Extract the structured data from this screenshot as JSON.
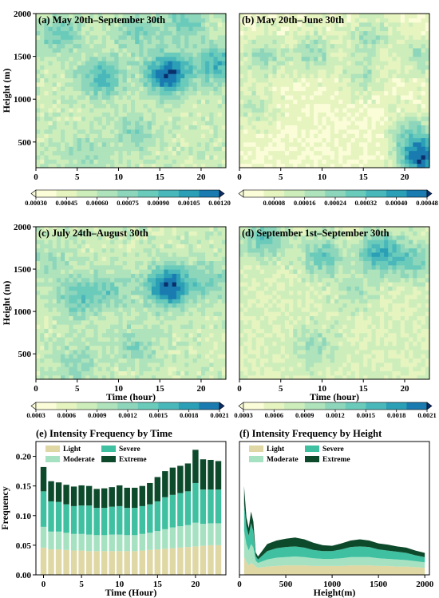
{
  "colors": {
    "contour": [
      "#fbfdd9",
      "#e6f4c0",
      "#cdeebb",
      "#aee3bb",
      "#8dd6bb",
      "#6bcbbb",
      "#4ab8bb",
      "#2a9fb5",
      "#1a7bb0"
    ],
    "extreme_dark": "#0a2f6b",
    "bar_light": "#dfd7a4",
    "bar_moderate": "#a6e2c2",
    "bar_severe": "#3fc0a0",
    "bar_extreme": "#0d4a2c"
  },
  "chart_data": [
    {
      "type": "heatmap",
      "panel": "a",
      "title": "(a) May 20th–September 30th",
      "ylabel": "Height (m)",
      "xlabel": "",
      "xticks": [
        "0",
        "5",
        "10",
        "15",
        "20"
      ],
      "yticks": [
        "500",
        "1000",
        "1500",
        "2000"
      ],
      "xlim": [
        0,
        23
      ],
      "ylim": [
        200,
        2000
      ],
      "colorbar_ticks": [
        "0.00030",
        "0.00045",
        "0.00060",
        "0.00075",
        "0.00090",
        "0.00105",
        "0.00120"
      ],
      "colorbar_range": [
        0.0003,
        0.0012
      ],
      "hotspots": [
        {
          "x": 16,
          "y": 1300,
          "v": 0.00125
        },
        {
          "x": 8,
          "y": 1250,
          "v": 0.00095
        },
        {
          "x": 22,
          "y": 1400,
          "v": 0.00095
        },
        {
          "x": 3,
          "y": 1750,
          "v": 0.00085
        },
        {
          "x": 12,
          "y": 1800,
          "v": 0.0008
        },
        {
          "x": 18,
          "y": 1900,
          "v": 0.00085
        },
        {
          "x": 6,
          "y": 400,
          "v": 0.0007
        },
        {
          "x": 12,
          "y": 600,
          "v": 0.00075
        }
      ],
      "base": 0.00055
    },
    {
      "type": "heatmap",
      "panel": "b",
      "title": "(b) May 20th–June 30th",
      "ylabel": "",
      "xlabel": "",
      "xticks": [
        "0",
        "5",
        "10",
        "15",
        "20"
      ],
      "yticks": [],
      "xlim": [
        0,
        23
      ],
      "ylim": [
        200,
        2000
      ],
      "colorbar_ticks": [
        "0.00008",
        "0.00016",
        "0.00024",
        "0.00032",
        "0.00040",
        "0.00048"
      ],
      "colorbar_range": [
        0.0,
        0.00048
      ],
      "hotspots": [
        {
          "x": 22,
          "y": 300,
          "v": 0.00046
        },
        {
          "x": 21,
          "y": 600,
          "v": 0.00026
        },
        {
          "x": 3,
          "y": 1500,
          "v": 0.00022
        },
        {
          "x": 9,
          "y": 1550,
          "v": 0.00022
        },
        {
          "x": 16,
          "y": 1750,
          "v": 0.0002
        },
        {
          "x": 22,
          "y": 1500,
          "v": 0.0002
        },
        {
          "x": 2,
          "y": 900,
          "v": 0.00016
        },
        {
          "x": 15,
          "y": 1300,
          "v": 0.00018
        }
      ],
      "base": 6e-05
    },
    {
      "type": "heatmap",
      "panel": "c",
      "title": "(c) July 24th–August 30th",
      "ylabel": "Height (m)",
      "xlabel": "Time (hour)",
      "xticks": [
        "0",
        "5",
        "10",
        "15",
        "20"
      ],
      "yticks": [
        "500",
        "1000",
        "1500",
        "2000"
      ],
      "xlim": [
        0,
        23
      ],
      "ylim": [
        200,
        2000
      ],
      "colorbar_ticks": [
        "0.0003",
        "0.0006",
        "0.0009",
        "0.0012",
        "0.0015",
        "0.0018",
        "0.0021"
      ],
      "colorbar_range": [
        0.0003,
        0.0021
      ],
      "hotspots": [
        {
          "x": 16,
          "y": 1300,
          "v": 0.0022
        },
        {
          "x": 5,
          "y": 1150,
          "v": 0.0014
        },
        {
          "x": 9,
          "y": 1250,
          "v": 0.0013
        },
        {
          "x": 21,
          "y": 1350,
          "v": 0.0013
        },
        {
          "x": 5,
          "y": 400,
          "v": 0.0012
        },
        {
          "x": 12,
          "y": 600,
          "v": 0.0012
        },
        {
          "x": 2,
          "y": 1600,
          "v": 0.0011
        },
        {
          "x": 12,
          "y": 1800,
          "v": 0.0008
        }
      ],
      "base": 0.0008
    },
    {
      "type": "heatmap",
      "panel": "d",
      "title": "(d) September 1st–September 30th",
      "ylabel": "",
      "xlabel": "Time (hour)",
      "xticks": [
        "0",
        "5",
        "10",
        "15",
        "20"
      ],
      "yticks": [],
      "xlim": [
        0,
        23
      ],
      "ylim": [
        200,
        2000
      ],
      "colorbar_ticks": [
        "0.0003",
        "0.0006",
        "0.0009",
        "0.0012",
        "0.0015",
        "0.0018",
        "0.0021"
      ],
      "colorbar_range": [
        0.0003,
        0.0021
      ],
      "hotspots": [
        {
          "x": 17,
          "y": 1700,
          "v": 0.0017
        },
        {
          "x": 10,
          "y": 1650,
          "v": 0.0014
        },
        {
          "x": 3,
          "y": 1850,
          "v": 0.0014
        },
        {
          "x": 21,
          "y": 1600,
          "v": 0.0013
        },
        {
          "x": 9,
          "y": 600,
          "v": 0.0011
        },
        {
          "x": 14,
          "y": 1250,
          "v": 0.001
        }
      ],
      "base": 0.0007
    },
    {
      "type": "bar",
      "panel": "e",
      "title": "(e) Intensity Frequency by Time",
      "xlabel": "Time (Hour)",
      "ylabel": "Frequency",
      "xlim": [
        -1,
        24
      ],
      "ylim": [
        0,
        0.225
      ],
      "xticks": [
        "0",
        "5",
        "10",
        "15",
        "20"
      ],
      "yticks": [
        "0.00",
        "0.05",
        "0.10",
        "0.15",
        "0.20"
      ],
      "legend": [
        "Light",
        "Moderate",
        "Severe",
        "Extreme"
      ],
      "categories": [
        0,
        1,
        2,
        3,
        4,
        5,
        6,
        7,
        8,
        9,
        10,
        11,
        12,
        13,
        14,
        15,
        16,
        17,
        18,
        19,
        20,
        21,
        22,
        23
      ],
      "series": [
        {
          "name": "Light",
          "values": [
            0.046,
            0.043,
            0.043,
            0.042,
            0.041,
            0.041,
            0.04,
            0.04,
            0.04,
            0.04,
            0.04,
            0.04,
            0.04,
            0.041,
            0.042,
            0.043,
            0.044,
            0.045,
            0.046,
            0.047,
            0.048,
            0.049,
            0.05,
            0.05
          ]
        },
        {
          "name": "Moderate",
          "values": [
            0.035,
            0.03,
            0.03,
            0.029,
            0.028,
            0.028,
            0.028,
            0.027,
            0.027,
            0.028,
            0.028,
            0.027,
            0.027,
            0.028,
            0.029,
            0.031,
            0.033,
            0.035,
            0.036,
            0.037,
            0.04,
            0.037,
            0.037,
            0.037
          ]
        },
        {
          "name": "Severe",
          "values": [
            0.06,
            0.051,
            0.05,
            0.048,
            0.047,
            0.048,
            0.049,
            0.046,
            0.046,
            0.047,
            0.048,
            0.046,
            0.046,
            0.047,
            0.048,
            0.05,
            0.054,
            0.055,
            0.056,
            0.057,
            0.067,
            0.058,
            0.057,
            0.057
          ]
        },
        {
          "name": "Extreme",
          "values": [
            0.041,
            0.034,
            0.033,
            0.033,
            0.033,
            0.034,
            0.033,
            0.032,
            0.033,
            0.033,
            0.035,
            0.034,
            0.034,
            0.034,
            0.036,
            0.041,
            0.044,
            0.046,
            0.046,
            0.047,
            0.056,
            0.051,
            0.05,
            0.048
          ]
        }
      ]
    },
    {
      "type": "area",
      "panel": "f",
      "title": "(f) Intensity Frequency by Height",
      "xlabel": "Height(m)",
      "ylabel": "",
      "xlim": [
        0,
        2050
      ],
      "ylim": [
        0,
        0.225
      ],
      "xticks": [
        "0",
        "500",
        "1000",
        "1500",
        "2000"
      ],
      "yticks": [],
      "legend": [
        "Light",
        "Moderate",
        "Severe",
        "Extreme"
      ],
      "x": [
        50,
        75,
        100,
        125,
        150,
        175,
        200,
        300,
        400,
        500,
        600,
        700,
        800,
        900,
        1000,
        1100,
        1200,
        1300,
        1400,
        1500,
        1600,
        1700,
        1800,
        1900,
        2000
      ],
      "series": [
        {
          "name": "Light",
          "values": [
            0.03,
            0.022,
            0.016,
            0.02,
            0.018,
            0.014,
            0.012,
            0.014,
            0.015,
            0.016,
            0.016,
            0.016,
            0.015,
            0.015,
            0.015,
            0.015,
            0.016,
            0.016,
            0.016,
            0.015,
            0.015,
            0.014,
            0.014,
            0.013,
            0.012
          ]
        },
        {
          "name": "Moderate",
          "values": [
            0.045,
            0.03,
            0.025,
            0.032,
            0.028,
            0.01,
            0.008,
            0.012,
            0.014,
            0.014,
            0.015,
            0.014,
            0.013,
            0.012,
            0.012,
            0.013,
            0.014,
            0.014,
            0.014,
            0.013,
            0.012,
            0.012,
            0.011,
            0.01,
            0.009
          ]
        },
        {
          "name": "Severe",
          "values": [
            0.045,
            0.03,
            0.025,
            0.035,
            0.028,
            0.008,
            0.006,
            0.014,
            0.016,
            0.017,
            0.017,
            0.016,
            0.014,
            0.013,
            0.013,
            0.015,
            0.017,
            0.018,
            0.017,
            0.015,
            0.014,
            0.013,
            0.012,
            0.01,
            0.009
          ]
        },
        {
          "name": "Extreme",
          "values": [
            0.03,
            0.015,
            0.013,
            0.02,
            0.016,
            0.006,
            0.005,
            0.012,
            0.013,
            0.014,
            0.015,
            0.014,
            0.012,
            0.01,
            0.009,
            0.01,
            0.011,
            0.012,
            0.011,
            0.01,
            0.01,
            0.009,
            0.009,
            0.008,
            0.007
          ]
        }
      ]
    }
  ]
}
